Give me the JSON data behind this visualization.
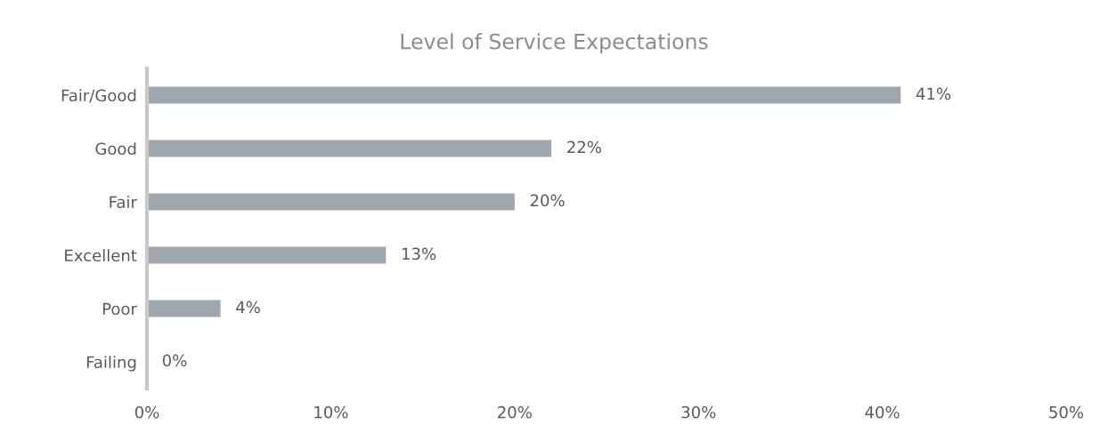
{
  "chart_data": {
    "type": "bar",
    "orientation": "horizontal",
    "title": "Level of Service Expectations",
    "categories": [
      "Fair/Good",
      "Good",
      "Fair",
      "Excellent",
      "Poor",
      "Failing"
    ],
    "values": [
      41,
      22,
      20,
      13,
      4,
      0
    ],
    "value_labels": [
      "41%",
      "22%",
      "20%",
      "13%",
      "4%",
      "0%"
    ],
    "color": "#9ea6ae",
    "xlim": [
      0,
      50
    ],
    "xticks": [
      {
        "value": 0,
        "label": "0%"
      },
      {
        "value": 10,
        "label": "10%"
      },
      {
        "value": 20,
        "label": "20%"
      },
      {
        "value": 30,
        "label": "30%"
      },
      {
        "value": 40,
        "label": "40%"
      },
      {
        "value": 50,
        "label": "50%"
      }
    ],
    "grid": false,
    "legend": false
  }
}
